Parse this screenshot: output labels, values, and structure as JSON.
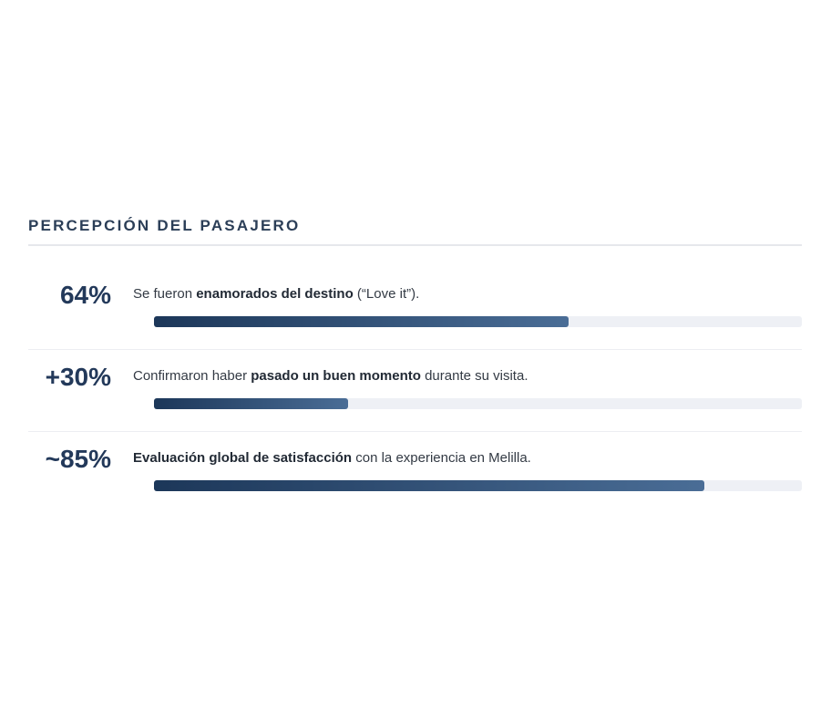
{
  "chart_data": {
    "type": "progress",
    "title": "PERCEPCIÓN DEL PASAJERO",
    "values": [
      64,
      30,
      85
    ],
    "value_labels": [
      "64%",
      "+30%",
      "~85%"
    ],
    "descriptions": [
      [
        {
          "text": "Se fueron "
        },
        {
          "text": "enamorados del destino",
          "bold": true
        },
        {
          "text": " (“Love it”)."
        }
      ],
      [
        {
          "text": "Confirmaron haber "
        },
        {
          "text": "pasado un buen momento",
          "bold": true
        },
        {
          "text": " durante su visita."
        }
      ],
      [
        {
          "text": "Evaluación global de satisfacción",
          "bold": true
        },
        {
          "text": " con la experiencia en Melilla."
        }
      ]
    ],
    "xlim": [
      0,
      100
    ],
    "color": [
      "#1c3759",
      "#4a6d96"
    ],
    "track_color": "#eef0f5"
  }
}
